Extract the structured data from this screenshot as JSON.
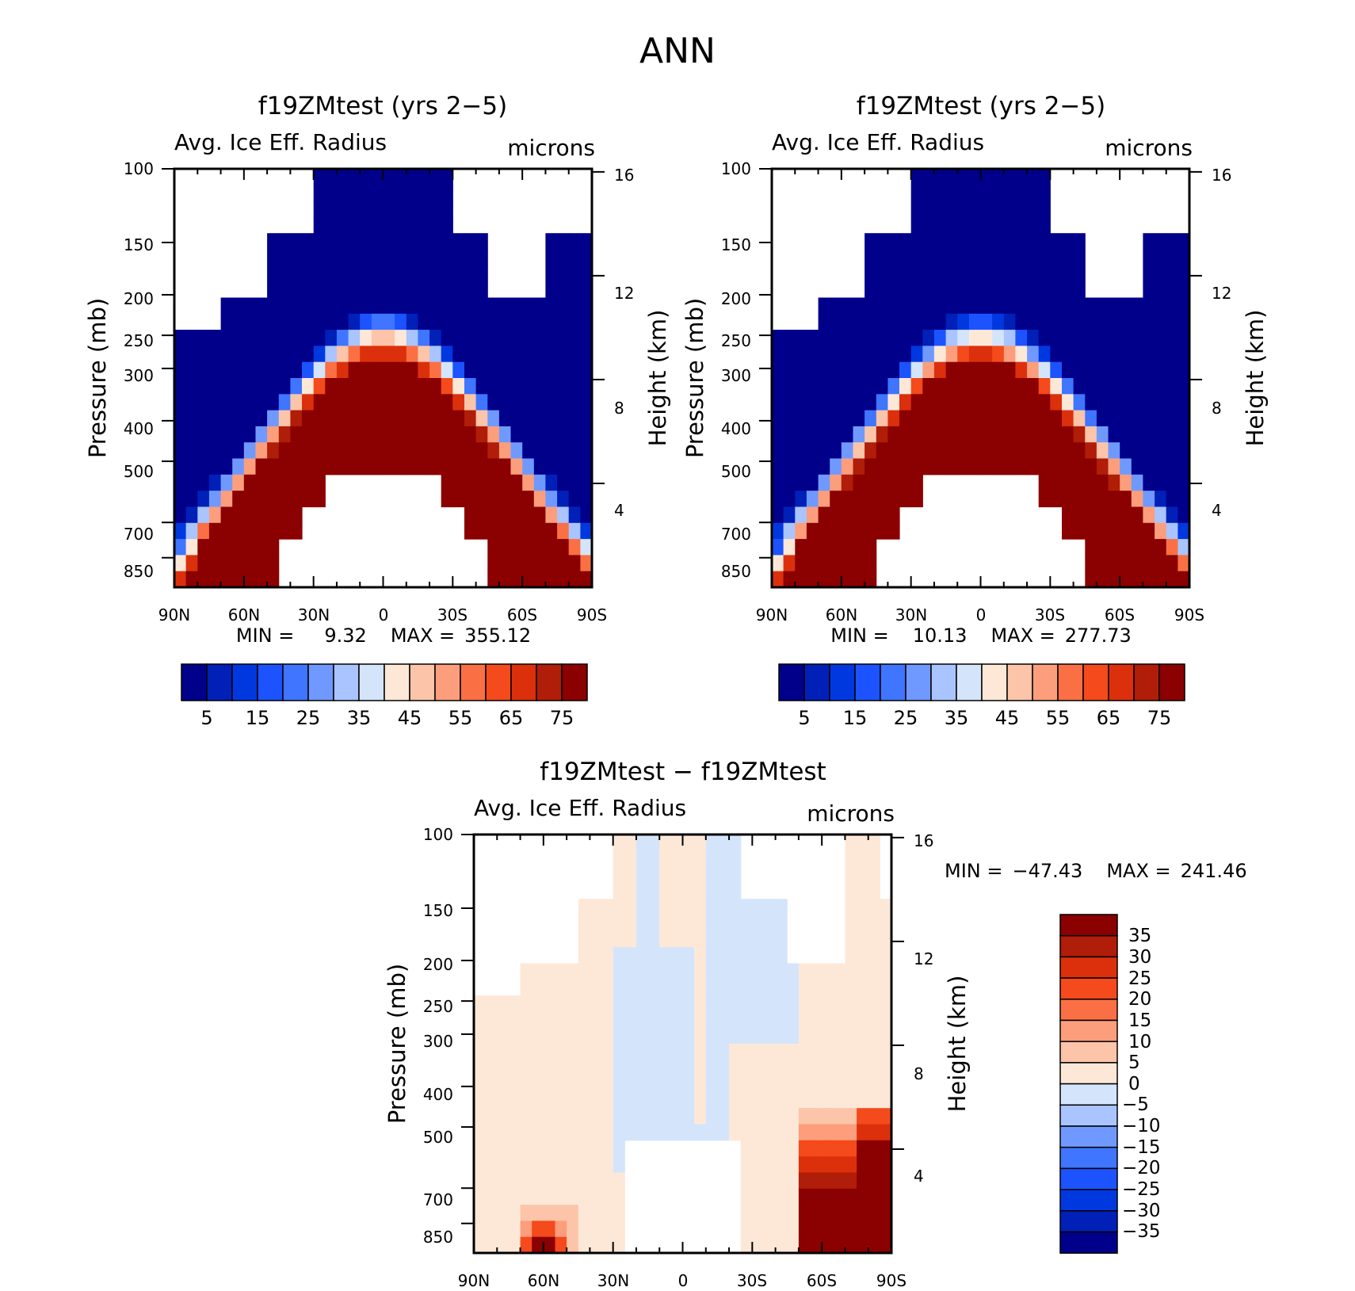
{
  "figure_title": "ANN",
  "colors": {
    "abs_palette": [
      "#00008b",
      "#0020b8",
      "#0038e0",
      "#1c53ff",
      "#3f75ff",
      "#7099ff",
      "#a9c4ff",
      "#d4e5fb",
      "#fde8d8",
      "#fcc4a8",
      "#fc9e7c",
      "#fa7044",
      "#f44a1c",
      "#dc300c",
      "#b01d08",
      "#8b0000"
    ],
    "diff_palette": [
      "#00008b",
      "#0020b8",
      "#0038e0",
      "#1c53ff",
      "#3f75ff",
      "#7099ff",
      "#a9c4ff",
      "#d4e5fb",
      "#fde8d8",
      "#fcc4a8",
      "#fc9e7c",
      "#fa7044",
      "#f44a1c",
      "#dc300c",
      "#b01d08",
      "#8b0000"
    ]
  },
  "chart_data": [
    {
      "type": "heatmap",
      "title": "f19ZMtest (yrs 2−5)",
      "variable": "Avg. Ice Eff. Radius",
      "units": "microns",
      "ylabel": "Pressure (mb)",
      "y2label": "Height (km)",
      "x_ticks": [
        "90N",
        "60N",
        "30N",
        "0",
        "30S",
        "60S",
        "90S"
      ],
      "y_ticks": [
        "100",
        "150",
        "200",
        "250",
        "300",
        "400",
        "500",
        "700",
        "850"
      ],
      "y2_ticks": [
        "16",
        "12",
        "8",
        "4"
      ],
      "x_range": [
        90,
        -90
      ],
      "y_range": [
        100,
        1000
      ],
      "stats": {
        "min_label": "MIN =",
        "min": "9.32",
        "max_label": "MAX =",
        "max": "355.12"
      },
      "colorbar_labels": [
        "5",
        "15",
        "25",
        "35",
        "45",
        "55",
        "65",
        "75"
      ],
      "contour_levels": [
        5,
        10,
        15,
        20,
        25,
        30,
        35,
        40,
        45,
        50,
        55,
        60,
        65,
        70,
        75
      ]
    },
    {
      "type": "heatmap",
      "title": "f19ZMtest (yrs 2−5)",
      "variable": "Avg. Ice Eff. Radius",
      "units": "microns",
      "ylabel": "Pressure (mb)",
      "y2label": "Height (km)",
      "x_ticks": [
        "90N",
        "60N",
        "30N",
        "0",
        "30S",
        "60S",
        "90S"
      ],
      "y_ticks": [
        "100",
        "150",
        "200",
        "250",
        "300",
        "400",
        "500",
        "700",
        "850"
      ],
      "y2_ticks": [
        "16",
        "12",
        "8",
        "4"
      ],
      "x_range": [
        90,
        -90
      ],
      "y_range": [
        100,
        1000
      ],
      "stats": {
        "min_label": "MIN =",
        "min": "10.13",
        "max_label": "MAX =",
        "max": "277.73"
      },
      "colorbar_labels": [
        "5",
        "15",
        "25",
        "35",
        "45",
        "55",
        "65",
        "75"
      ],
      "contour_levels": [
        5,
        10,
        15,
        20,
        25,
        30,
        35,
        40,
        45,
        50,
        55,
        60,
        65,
        70,
        75
      ]
    },
    {
      "type": "heatmap",
      "title": "f19ZMtest − f19ZMtest",
      "variable": "Avg. Ice Eff. Radius",
      "units": "microns",
      "ylabel": "Pressure (mb)",
      "y2label": "Height (km)",
      "x_ticks": [
        "90N",
        "60N",
        "30N",
        "0",
        "30S",
        "60S",
        "90S"
      ],
      "y_ticks": [
        "100",
        "150",
        "200",
        "250",
        "300",
        "400",
        "500",
        "700",
        "850"
      ],
      "y2_ticks": [
        "16",
        "12",
        "8",
        "4"
      ],
      "x_range": [
        90,
        -90
      ],
      "y_range": [
        100,
        1000
      ],
      "stats": {
        "min_label": "MIN =",
        "min": "−47.43",
        "max_label": "MAX =",
        "max": "241.46"
      },
      "colorbar_labels": [
        "35",
        "30",
        "25",
        "20",
        "15",
        "10",
        "5",
        "0",
        "−5",
        "−10",
        "−15",
        "−20",
        "−25",
        "−30",
        "−35"
      ],
      "contour_levels": [
        -35,
        -30,
        -25,
        -20,
        -15,
        -10,
        -5,
        0,
        5,
        10,
        15,
        20,
        25,
        30,
        35
      ]
    }
  ]
}
